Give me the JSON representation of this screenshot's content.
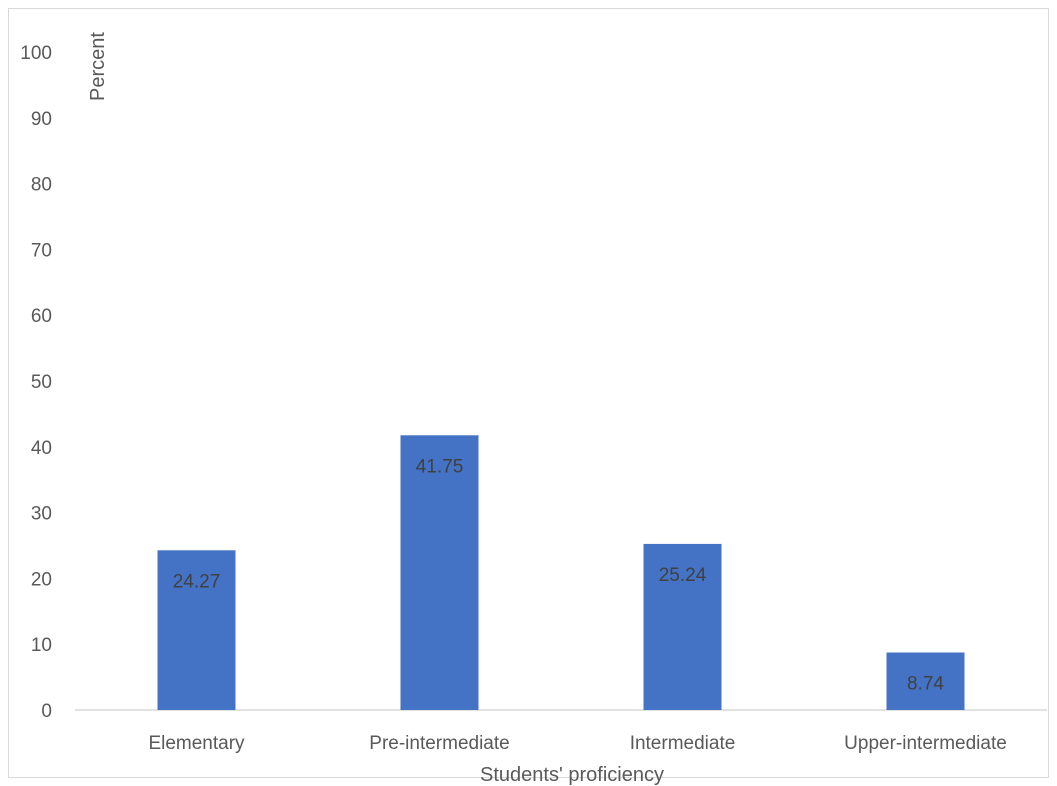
{
  "chart_data": {
    "type": "bar",
    "categories": [
      "Elementary",
      "Pre-intermediate",
      "Intermediate",
      "Upper-intermediate"
    ],
    "values": [
      24.27,
      41.75,
      25.24,
      8.74
    ],
    "data_labels": [
      "24.27",
      "41.75",
      "25.24",
      "8.74"
    ],
    "title": "",
    "xlabel": "Students' proficiency",
    "ylabel": "Percent",
    "ylim": [
      0,
      100
    ],
    "yticks": [
      0,
      10,
      20,
      30,
      40,
      50,
      60,
      70,
      80,
      90,
      100
    ],
    "ytick_labels": [
      "0",
      "10",
      "20",
      "30",
      "40",
      "50",
      "60",
      "70",
      "80",
      "90",
      "100"
    ],
    "grid": false,
    "legend": "none",
    "bar_color": "#4472c4"
  }
}
